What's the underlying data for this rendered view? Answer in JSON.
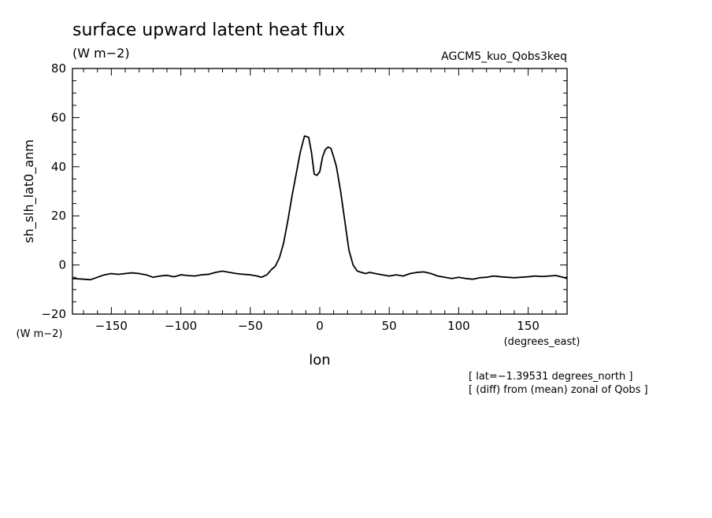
{
  "chart_data": {
    "type": "line",
    "title": "surface upward latent heat flux",
    "subtitle": "(W m−2)",
    "run_label": "AGCM5_kuo_Qobs3keq",
    "ylabel": "sh_slh_lat0_anm",
    "yunits": "(W m−2)",
    "xlabel": "lon",
    "xunits": "(degrees_east)",
    "notes": [
      "[ lat=−1.39531 degrees_north ]",
      "[ (diff) from (mean) zonal of Qobs ]"
    ],
    "xlim": [
      -178,
      178
    ],
    "ylim": [
      -20,
      80
    ],
    "xticks": [
      -150,
      -100,
      -50,
      0,
      50,
      100,
      150
    ],
    "xtick_labels": [
      "−150",
      "−100",
      "−50",
      "0",
      "50",
      "100",
      "150"
    ],
    "yticks": [
      -20,
      0,
      20,
      40,
      60,
      80
    ],
    "ytick_labels": [
      "−20",
      "0",
      "20",
      "40",
      "60",
      "80"
    ],
    "grid": false,
    "legend": "none",
    "line_color": "#000000",
    "series": [
      {
        "x": [
          -178,
          -170,
          -165,
          -160,
          -155,
          -150,
          -145,
          -140,
          -135,
          -130,
          -125,
          -120,
          -115,
          -110,
          -105,
          -100,
          -95,
          -90,
          -85,
          -80,
          -75,
          -70,
          -65,
          -60,
          -55,
          -50,
          -45,
          -42,
          -38,
          -35,
          -32,
          -29,
          -26,
          -23,
          -20,
          -17,
          -14,
          -11,
          -8,
          -6,
          -4,
          -2,
          0,
          2,
          4,
          6,
          8,
          10,
          12,
          15,
          18,
          21,
          24,
          27,
          30,
          33,
          36,
          40,
          45,
          50,
          55,
          60,
          65,
          70,
          75,
          80,
          85,
          90,
          95,
          100,
          105,
          110,
          115,
          120,
          125,
          130,
          135,
          140,
          145,
          150,
          155,
          160,
          165,
          170,
          175,
          178
        ],
        "y": [
          -5.5,
          -5.8,
          -6.0,
          -5.0,
          -4.0,
          -3.5,
          -3.8,
          -3.5,
          -3.2,
          -3.5,
          -4.0,
          -5.0,
          -4.5,
          -4.2,
          -4.8,
          -4.0,
          -4.3,
          -4.5,
          -4.0,
          -3.8,
          -3.0,
          -2.5,
          -3.0,
          -3.5,
          -3.8,
          -4.0,
          -4.5,
          -5.0,
          -4.0,
          -2.0,
          -0.5,
          3.0,
          9.0,
          18.0,
          28.0,
          37.0,
          46.0,
          52.5,
          52.0,
          46.0,
          37.0,
          36.5,
          38.0,
          44.0,
          47.0,
          48.0,
          47.5,
          44.0,
          40.0,
          30.0,
          18.0,
          6.0,
          0.0,
          -2.5,
          -3.0,
          -3.5,
          -3.0,
          -3.5,
          -4.0,
          -4.5,
          -4.0,
          -4.5,
          -3.5,
          -3.0,
          -2.8,
          -3.5,
          -4.5,
          -5.0,
          -5.5,
          -5.0,
          -5.5,
          -5.8,
          -5.2,
          -5.0,
          -4.5,
          -4.8,
          -5.0,
          -5.2,
          -5.0,
          -4.8,
          -4.5,
          -4.7,
          -4.5,
          -4.3,
          -5.0,
          -5.5
        ]
      }
    ]
  }
}
